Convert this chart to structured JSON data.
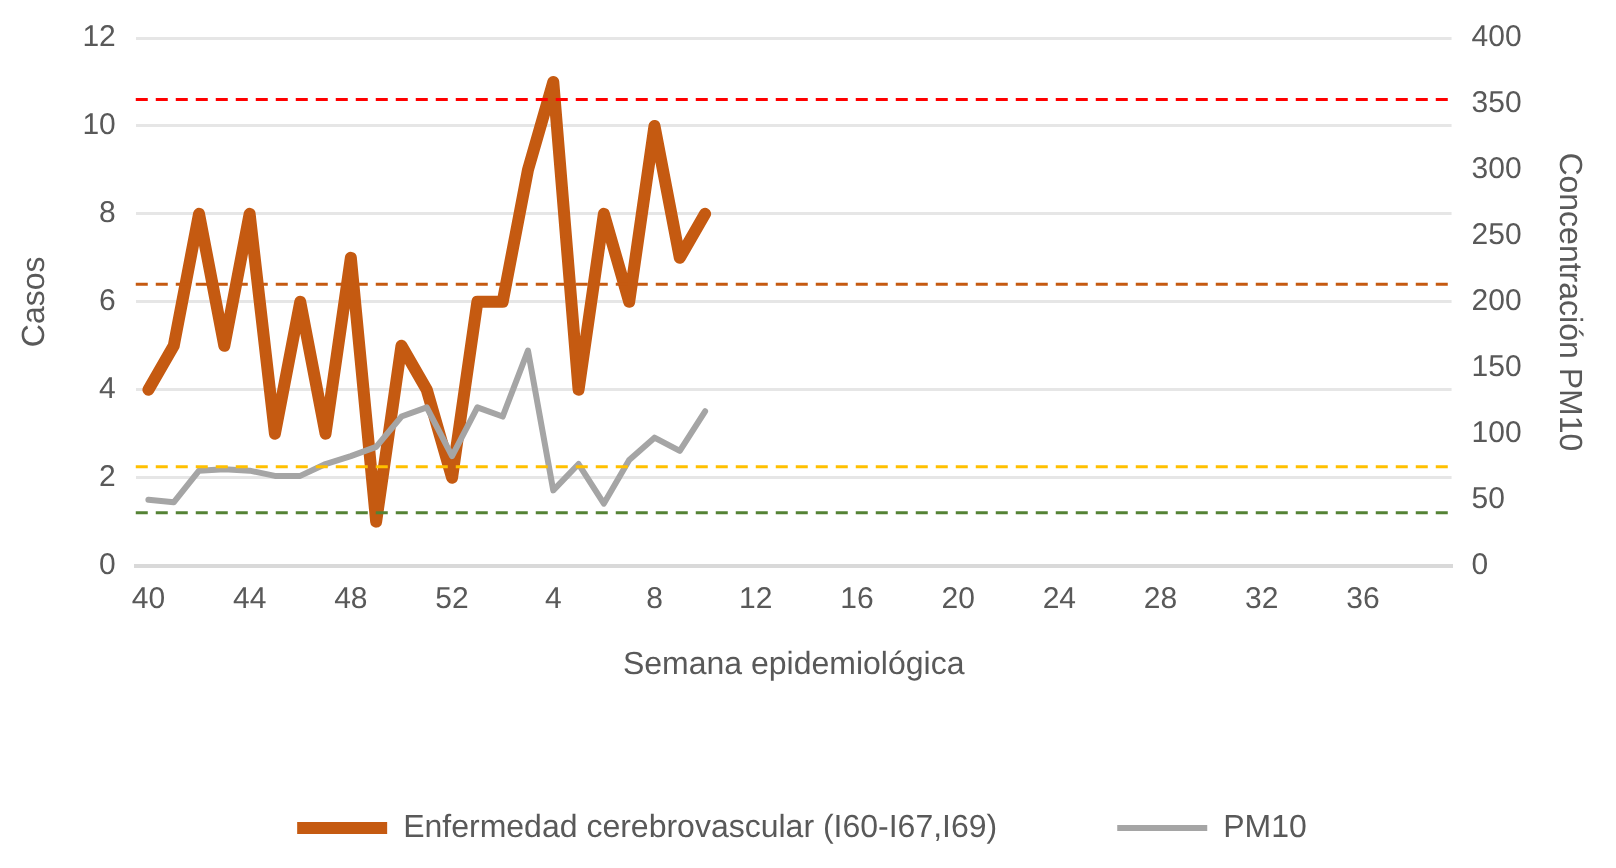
{
  "chart_data": {
    "type": "line",
    "xlabel": "Semana epidemiológica",
    "ylabel": "Casos",
    "y2label": "Concentración PM10",
    "categories": [
      "40",
      null,
      null,
      null,
      "44",
      null,
      null,
      null,
      "48",
      null,
      null,
      null,
      "52",
      null,
      null,
      null,
      "4",
      null,
      null,
      null,
      "8",
      null,
      null,
      null,
      "12",
      null,
      null,
      null,
      "16",
      null,
      null,
      null,
      "20",
      null,
      null,
      null,
      "24",
      null,
      null,
      null,
      "28",
      null,
      null,
      null,
      "32",
      null,
      null,
      null,
      "36",
      null,
      null,
      null
    ],
    "series": [
      {
        "name": "Enfermedad cerebrovascular (I60-I67,I69)",
        "color": "#c55a11",
        "values": [
          4,
          5,
          8,
          5,
          8,
          3,
          6,
          3,
          7,
          1,
          5,
          4,
          2,
          6,
          6,
          9,
          11,
          4,
          8,
          6,
          10,
          7,
          8,
          null,
          null,
          null,
          null,
          null,
          null,
          null,
          null,
          null,
          null,
          null,
          null,
          null,
          null,
          null,
          null,
          null,
          null,
          null,
          null,
          null,
          null,
          null,
          null,
          null,
          null,
          null,
          null,
          null
        ]
      },
      {
        "name": "PM10",
        "color": "#a5a5a5",
        "axis": "y2",
        "values": [
          50,
          48,
          72,
          73,
          72,
          68,
          68,
          77,
          83,
          90,
          113,
          120,
          83,
          120,
          113,
          163,
          57,
          77,
          47,
          80,
          97,
          87,
          117,
          null,
          null,
          null,
          null,
          null,
          null,
          null,
          null,
          null,
          null,
          null,
          null,
          null,
          null,
          null,
          null,
          null,
          null,
          null,
          null,
          null,
          null,
          null,
          null,
          null,
          null,
          null,
          null,
          null
        ]
      }
    ],
    "ylim": [
      0,
      12
    ],
    "yticks": [
      0,
      2,
      4,
      6,
      8,
      10,
      12
    ],
    "y2lim": [
      0,
      400
    ],
    "y2ticks": [
      0,
      50,
      100,
      150,
      200,
      250,
      300,
      350,
      400
    ],
    "ref_lines": [
      {
        "axis": "y",
        "value": 10.6,
        "color": "#ff0000",
        "line_style": "dashed"
      },
      {
        "axis": "y",
        "value": 6.4,
        "color": "#c55a11",
        "line_style": "dashed"
      },
      {
        "axis": "y",
        "value": 2.25,
        "color": "#ffc000",
        "line_style": "dashed"
      },
      {
        "axis": "y",
        "value": 1.2,
        "color": "#548235",
        "line_style": "dashed"
      }
    ],
    "grid": "y",
    "legend": "bottom",
    "marker": "none",
    "line_style": "solid"
  }
}
